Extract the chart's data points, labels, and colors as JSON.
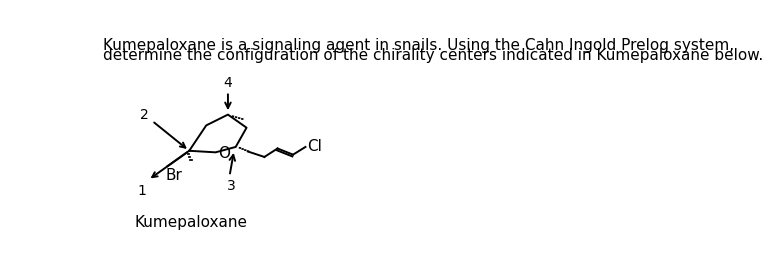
{
  "title_line1": "Kumepaloxane is a signaling agent in snails. Using the Cahn Ingold Prelog system,",
  "title_line2": "determine the configuration of the chirality centers indicated in Kumepaloxane below.",
  "label_kumepaloxane": "Kumepaloxane",
  "label_Br": "Br",
  "label_O": "O",
  "label_Cl": "Cl",
  "label_1": "1",
  "label_2": "2",
  "label_3": "3",
  "label_4": "4",
  "text_color": "#000000",
  "bg_color": "#ffffff",
  "title_fontsize": 11.0,
  "label_fontsize": 11,
  "small_fontsize": 10
}
